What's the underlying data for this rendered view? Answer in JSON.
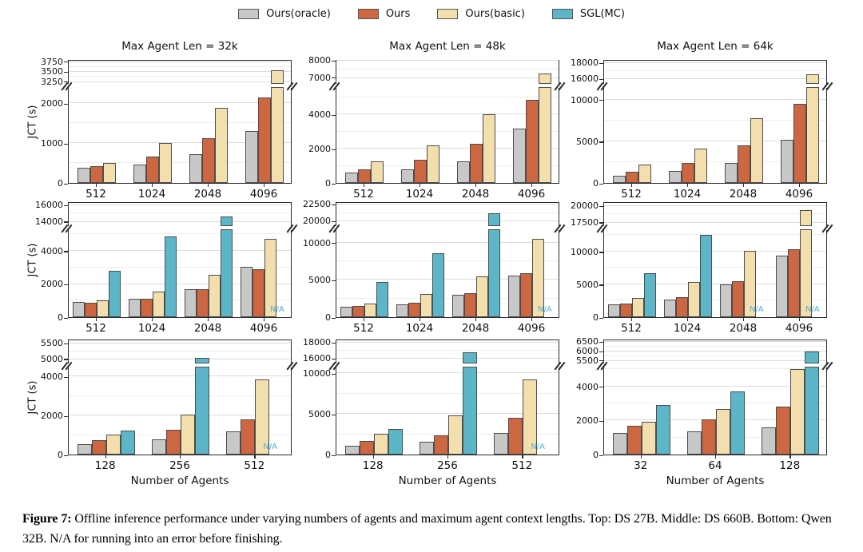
{
  "legend": {
    "items": [
      {
        "label": "Ours(oracle)",
        "color": "#c8c8c8"
      },
      {
        "label": "Ours",
        "color": "#cc6742"
      },
      {
        "label": "Ours(basic)",
        "color": "#f3deae"
      },
      {
        "label": "SGL(MC)",
        "color": "#5db6c7"
      }
    ]
  },
  "colors": {
    "bar_border": "#4d4d4d",
    "grid": "#dcdcdc",
    "axis": "#2b2b2b",
    "na_text": "#4fb3d6"
  },
  "axis_labels": {
    "y": "JCT (s)",
    "x": "Number of Agents"
  },
  "na_text": "N/A",
  "caption": {
    "label": "Figure 7:",
    "text": "Offline inference performance under varying numbers of agents and maximum agent context lengths. Top: DS 27B. Middle: DS 660B. Bottom: Qwen 32B. N/A for running into an error before finishing."
  },
  "chart_data": [
    {
      "type": "bar",
      "row": 0,
      "col": 0,
      "title": "Max Agent Len = 32k",
      "ylabel": "JCT (s)",
      "xlabel": null,
      "categories": [
        "512",
        "1024",
        "2048",
        "4096"
      ],
      "series": [
        {
          "name": "Ours(oracle)",
          "values": [
            390,
            460,
            730,
            1310
          ]
        },
        {
          "name": "Ours",
          "values": [
            420,
            670,
            1120,
            2150
          ]
        },
        {
          "name": "Ours(basic)",
          "values": [
            510,
            1000,
            1880,
            3550
          ]
        }
      ],
      "axis_break": {
        "lower": {
          "min": 0,
          "max": 2400,
          "ticks": [
            0,
            1000,
            2000
          ]
        },
        "upper": {
          "min": 3200,
          "max": 3800,
          "ticks": [
            3250,
            3500,
            3750
          ]
        }
      }
    },
    {
      "type": "bar",
      "row": 0,
      "col": 1,
      "title": "Max Agent Len = 48k",
      "ylabel": null,
      "xlabel": null,
      "categories": [
        "512",
        "1024",
        "2048",
        "4096"
      ],
      "series": [
        {
          "name": "Ours(oracle)",
          "values": [
            620,
            790,
            1270,
            3170
          ]
        },
        {
          "name": "Ours",
          "values": [
            800,
            1350,
            2280,
            4850
          ]
        },
        {
          "name": "Ours(basic)",
          "values": [
            1250,
            2200,
            4030,
            7250
          ]
        }
      ],
      "axis_break": {
        "lower": {
          "min": 0,
          "max": 5600,
          "ticks": [
            0,
            2000,
            4000
          ]
        },
        "upper": {
          "min": 6650,
          "max": 8050,
          "ticks": [
            7000,
            8000
          ]
        }
      }
    },
    {
      "type": "bar",
      "row": 0,
      "col": 2,
      "title": "Max Agent Len = 64k",
      "ylabel": null,
      "xlabel": null,
      "categories": [
        "512",
        "1024",
        "2048",
        "4096"
      ],
      "series": [
        {
          "name": "Ours(oracle)",
          "values": [
            900,
            1450,
            2400,
            5200
          ]
        },
        {
          "name": "Ours",
          "values": [
            1300,
            2400,
            4500,
            9500
          ]
        },
        {
          "name": "Ours(basic)",
          "values": [
            2250,
            4100,
            7800,
            16600
          ]
        }
      ],
      "axis_break": {
        "lower": {
          "min": 0,
          "max": 11500,
          "ticks": [
            0,
            5000,
            10000
          ]
        },
        "upper": {
          "min": 15400,
          "max": 18400,
          "ticks": [
            16000,
            18000
          ]
        }
      }
    },
    {
      "type": "bar",
      "row": 1,
      "col": 0,
      "title": null,
      "ylabel": "JCT (s)",
      "xlabel": null,
      "categories": [
        "512",
        "1024",
        "2048",
        "4096"
      ],
      "series": [
        {
          "name": "Ours(oracle)",
          "values": [
            900,
            1100,
            1700,
            3020
          ]
        },
        {
          "name": "Ours",
          "values": [
            880,
            1100,
            1670,
            2900
          ]
        },
        {
          "name": "Ours(basic)",
          "values": [
            1000,
            1520,
            2550,
            4700
          ]
        },
        {
          "name": "SGL(MC)",
          "values": [
            2780,
            4850,
            14700,
            null
          ]
        }
      ],
      "axis_break": {
        "lower": {
          "min": 0,
          "max": 5300,
          "ticks": [
            0,
            2000,
            4000
          ]
        },
        "upper": {
          "min": 13500,
          "max": 16400,
          "ticks": [
            14000,
            16000
          ]
        }
      }
    },
    {
      "type": "bar",
      "row": 1,
      "col": 1,
      "title": null,
      "ylabel": null,
      "xlabel": null,
      "categories": [
        "512",
        "1024",
        "2048",
        "4096"
      ],
      "series": [
        {
          "name": "Ours(oracle)",
          "values": [
            1400,
            1750,
            3000,
            5600
          ]
        },
        {
          "name": "Ours",
          "values": [
            1450,
            1900,
            3200,
            5900
          ]
        },
        {
          "name": "Ours(basic)",
          "values": [
            1800,
            3100,
            5500,
            10500
          ]
        },
        {
          "name": "SGL(MC)",
          "values": [
            4700,
            8600,
            21200,
            null
          ]
        }
      ],
      "axis_break": {
        "lower": {
          "min": 0,
          "max": 11800,
          "ticks": [
            0,
            5000,
            10000
          ]
        },
        "upper": {
          "min": 19300,
          "max": 22900,
          "ticks": [
            20000,
            22500
          ]
        }
      }
    },
    {
      "type": "bar",
      "row": 1,
      "col": 2,
      "title": null,
      "ylabel": null,
      "xlabel": null,
      "categories": [
        "512",
        "1024",
        "2048",
        "4096"
      ],
      "series": [
        {
          "name": "Ours(oracle)",
          "values": [
            2000,
            2700,
            4950,
            9400
          ]
        },
        {
          "name": "Ours",
          "values": [
            2100,
            3000,
            5450,
            10400
          ]
        },
        {
          "name": "Ours(basic)",
          "values": [
            2950,
            5400,
            10100,
            19400
          ]
        },
        {
          "name": "SGL(MC)",
          "values": [
            6750,
            12600,
            null,
            null
          ]
        }
      ],
      "axis_break": {
        "lower": {
          "min": 0,
          "max": 13400,
          "ticks": [
            0,
            5000,
            10000
          ]
        },
        "upper": {
          "min": 17000,
          "max": 20600,
          "ticks": [
            17500,
            20000
          ]
        }
      }
    },
    {
      "type": "bar",
      "row": 2,
      "col": 0,
      "title": null,
      "ylabel": "JCT (s)",
      "xlabel": "Number of Agents",
      "categories": [
        "128",
        "256",
        "512"
      ],
      "series": [
        {
          "name": "Ours(oracle)",
          "values": [
            550,
            780,
            1180
          ]
        },
        {
          "name": "Ours",
          "values": [
            750,
            1250,
            1800
          ]
        },
        {
          "name": "Ours(basic)",
          "values": [
            1020,
            2050,
            3830
          ]
        },
        {
          "name": "SGL(MC)",
          "values": [
            1230,
            5050,
            null
          ]
        }
      ],
      "axis_break": {
        "lower": {
          "min": 0,
          "max": 4500,
          "ticks": [
            0,
            2000,
            4000
          ]
        },
        "upper": {
          "min": 4870,
          "max": 5640,
          "ticks": [
            5000,
            5500
          ]
        }
      }
    },
    {
      "type": "bar",
      "row": 2,
      "col": 1,
      "title": null,
      "ylabel": null,
      "xlabel": "Number of Agents",
      "categories": [
        "128",
        "256",
        "512"
      ],
      "series": [
        {
          "name": "Ours(oracle)",
          "values": [
            1050,
            1600,
            2700
          ]
        },
        {
          "name": "Ours",
          "values": [
            1700,
            2400,
            4500
          ]
        },
        {
          "name": "Ours(basic)",
          "values": [
            2600,
            4800,
            9200
          ]
        },
        {
          "name": "SGL(MC)",
          "values": [
            3100,
            16800,
            null
          ]
        }
      ],
      "axis_break": {
        "lower": {
          "min": 0,
          "max": 10800,
          "ticks": [
            0,
            5000,
            10000
          ]
        },
        "upper": {
          "min": 15400,
          "max": 18400,
          "ticks": [
            16000,
            18000
          ]
        }
      }
    },
    {
      "type": "bar",
      "row": 2,
      "col": 2,
      "title": null,
      "ylabel": null,
      "xlabel": "Number of Agents",
      "categories": [
        "32",
        "64",
        "128"
      ],
      "series": [
        {
          "name": "Ours(oracle)",
          "values": [
            1250,
            1350,
            1600
          ]
        },
        {
          "name": "Ours",
          "values": [
            1700,
            2050,
            2800
          ]
        },
        {
          "name": "Ours(basic)",
          "values": [
            1900,
            2650,
            5000
          ]
        },
        {
          "name": "SGL(MC)",
          "values": [
            2900,
            3700,
            5980
          ]
        }
      ],
      "axis_break": {
        "lower": {
          "min": 0,
          "max": 5150,
          "ticks": [
            0,
            2000,
            4000
          ]
        },
        "upper": {
          "min": 5350,
          "max": 6650,
          "ticks": [
            5500,
            6000,
            6500
          ]
        }
      }
    }
  ]
}
